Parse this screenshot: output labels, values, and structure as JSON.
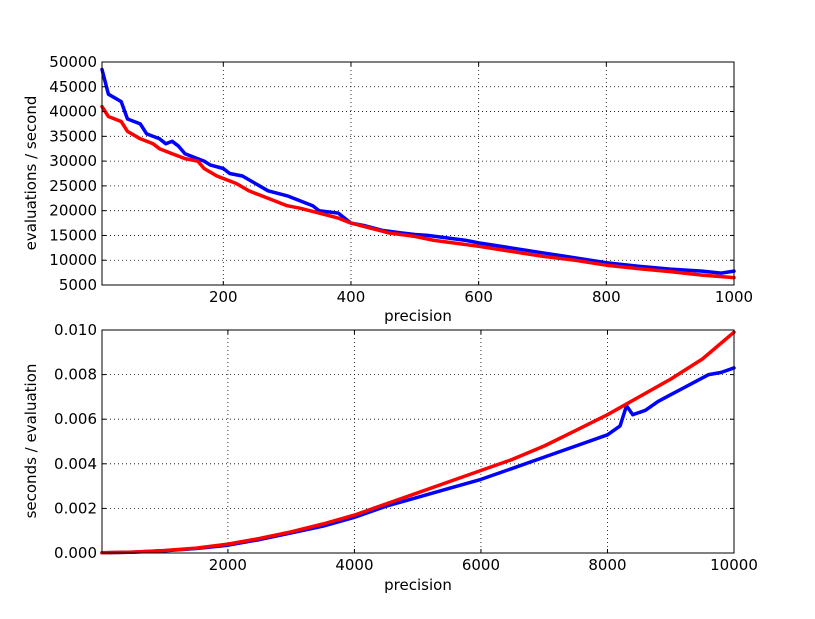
{
  "chart_data": [
    {
      "type": "line",
      "xlabel": "precision",
      "ylabel": "evaluations / second",
      "xlim": [
        10,
        1000
      ],
      "ylim": [
        5000,
        50000
      ],
      "xticks": [
        "200",
        "400",
        "600",
        "800",
        "1000"
      ],
      "yticks": [
        "5000",
        "10000",
        "15000",
        "20000",
        "25000",
        "30000",
        "35000",
        "40000",
        "45000",
        "50000"
      ],
      "grid": true,
      "series": [
        {
          "color": "#0000ff",
          "points": [
            [
              10,
              48500
            ],
            [
              20,
              43500
            ],
            [
              40,
              42000
            ],
            [
              50,
              38500
            ],
            [
              70,
              37500
            ],
            [
              80,
              35500
            ],
            [
              100,
              34500
            ],
            [
              110,
              33500
            ],
            [
              120,
              34000
            ],
            [
              130,
              33000
            ],
            [
              140,
              31500
            ],
            [
              150,
              31000
            ],
            [
              170,
              30000
            ],
            [
              180,
              29200
            ],
            [
              200,
              28500
            ],
            [
              210,
              27500
            ],
            [
              230,
              27000
            ],
            [
              250,
              25500
            ],
            [
              270,
              24000
            ],
            [
              300,
              23000
            ],
            [
              320,
              22000
            ],
            [
              340,
              21000
            ],
            [
              350,
              20000
            ],
            [
              380,
              19500
            ],
            [
              400,
              17500
            ],
            [
              420,
              17000
            ],
            [
              450,
              16000
            ],
            [
              480,
              15500
            ],
            [
              500,
              15200
            ],
            [
              520,
              15000
            ],
            [
              550,
              14500
            ],
            [
              580,
              14000
            ],
            [
              600,
              13500
            ],
            [
              650,
              12500
            ],
            [
              700,
              11500
            ],
            [
              750,
              10500
            ],
            [
              800,
              9500
            ],
            [
              850,
              8800
            ],
            [
              900,
              8200
            ],
            [
              950,
              7800
            ],
            [
              980,
              7400
            ],
            [
              1000,
              7800
            ]
          ]
        },
        {
          "color": "#ff0000",
          "points": [
            [
              10,
              41000
            ],
            [
              20,
              39000
            ],
            [
              40,
              38000
            ],
            [
              50,
              36000
            ],
            [
              70,
              34500
            ],
            [
              90,
              33500
            ],
            [
              100,
              32500
            ],
            [
              120,
              31500
            ],
            [
              140,
              30500
            ],
            [
              160,
              30000
            ],
            [
              170,
              28500
            ],
            [
              190,
              27000
            ],
            [
              200,
              26500
            ],
            [
              220,
              25500
            ],
            [
              240,
              24000
            ],
            [
              260,
              23000
            ],
            [
              280,
              22000
            ],
            [
              300,
              21000
            ],
            [
              320,
              20500
            ],
            [
              350,
              19500
            ],
            [
              380,
              18500
            ],
            [
              400,
              17500
            ],
            [
              430,
              16500
            ],
            [
              460,
              15500
            ],
            [
              500,
              14800
            ],
            [
              530,
              14000
            ],
            [
              560,
              13500
            ],
            [
              600,
              12800
            ],
            [
              650,
              11800
            ],
            [
              700,
              10800
            ],
            [
              750,
              10000
            ],
            [
              800,
              9000
            ],
            [
              850,
              8300
            ],
            [
              900,
              7700
            ],
            [
              950,
              7000
            ],
            [
              1000,
              6500
            ]
          ]
        }
      ]
    },
    {
      "type": "line",
      "xlabel": "precision",
      "ylabel": "seconds / evaluation",
      "xlim": [
        10,
        10000
      ],
      "ylim": [
        0,
        0.01
      ],
      "xticks": [
        "2000",
        "4000",
        "6000",
        "8000",
        "10000"
      ],
      "yticks": [
        "0.000",
        "0.002",
        "0.004",
        "0.006",
        "0.008",
        "0.010"
      ],
      "grid": true,
      "series": [
        {
          "color": "#0000ff",
          "points": [
            [
              10,
              1e-05
            ],
            [
              500,
              4e-05
            ],
            [
              1000,
              0.0001
            ],
            [
              1500,
              0.0002
            ],
            [
              2000,
              0.00035
            ],
            [
              2500,
              0.0006
            ],
            [
              3000,
              0.0009
            ],
            [
              3500,
              0.0012
            ],
            [
              4000,
              0.0016
            ],
            [
              4500,
              0.0021
            ],
            [
              5000,
              0.0025
            ],
            [
              5500,
              0.0029
            ],
            [
              6000,
              0.0033
            ],
            [
              6500,
              0.0038
            ],
            [
              7000,
              0.0043
            ],
            [
              7500,
              0.0048
            ],
            [
              8000,
              0.0053
            ],
            [
              8200,
              0.0057
            ],
            [
              8300,
              0.0066
            ],
            [
              8400,
              0.0062
            ],
            [
              8600,
              0.0064
            ],
            [
              8800,
              0.0068
            ],
            [
              9000,
              0.0071
            ],
            [
              9200,
              0.0074
            ],
            [
              9400,
              0.0077
            ],
            [
              9600,
              0.008
            ],
            [
              9800,
              0.0081
            ],
            [
              10000,
              0.0083
            ]
          ]
        },
        {
          "color": "#ff0000",
          "points": [
            [
              10,
              1e-05
            ],
            [
              500,
              4e-05
            ],
            [
              1000,
              0.00011
            ],
            [
              1500,
              0.00022
            ],
            [
              2000,
              0.0004
            ],
            [
              2500,
              0.00065
            ],
            [
              3000,
              0.00095
            ],
            [
              3500,
              0.0013
            ],
            [
              4000,
              0.0017
            ],
            [
              4500,
              0.0022
            ],
            [
              5000,
              0.0027
            ],
            [
              5500,
              0.0032
            ],
            [
              6000,
              0.0037
            ],
            [
              6500,
              0.0042
            ],
            [
              7000,
              0.0048
            ],
            [
              7500,
              0.0055
            ],
            [
              8000,
              0.0062
            ],
            [
              8500,
              0.007
            ],
            [
              9000,
              0.0078
            ],
            [
              9500,
              0.0087
            ],
            [
              10000,
              0.0099
            ]
          ]
        }
      ]
    }
  ]
}
